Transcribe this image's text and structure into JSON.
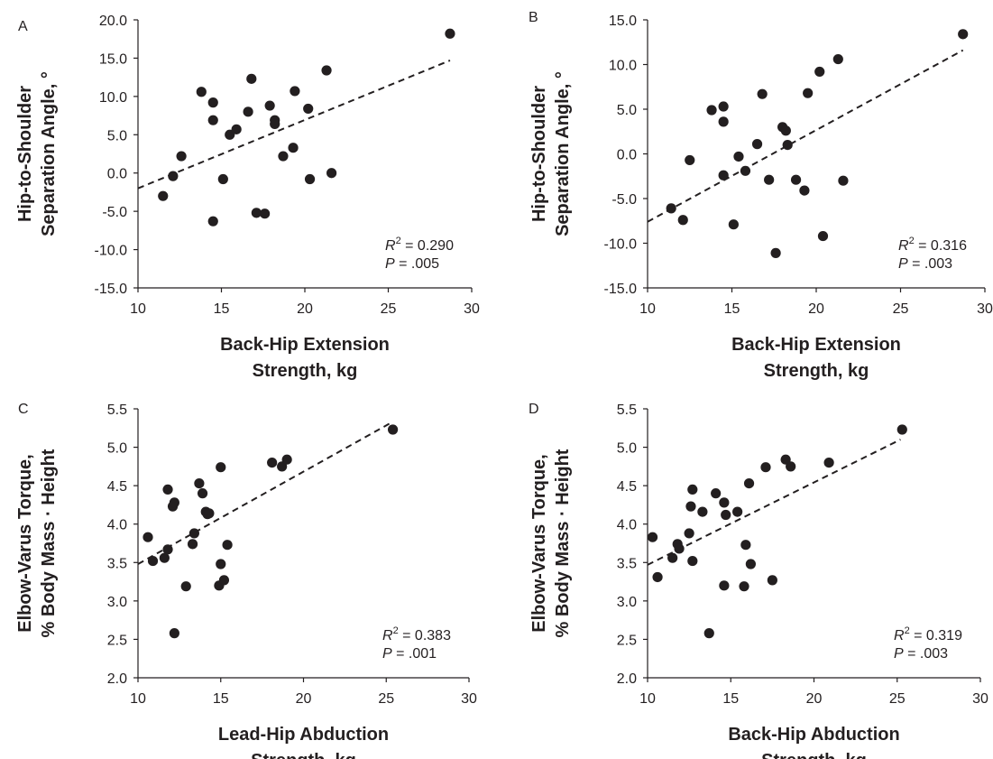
{
  "figure": {
    "colors": {
      "ink": "#231f20",
      "point": "#231f20",
      "background": "#ffffff"
    }
  },
  "chart_data": [
    {
      "panel": "A",
      "type": "scatter",
      "title": "",
      "xlabel": [
        "Back-Hip Extension",
        "Strength, kg"
      ],
      "ylabel": [
        "Hip-to-Shoulder",
        "Separation Angle, °"
      ],
      "xlim": [
        10,
        30
      ],
      "ylim": [
        -15,
        20
      ],
      "xticks": [
        10,
        15,
        20,
        25,
        30
      ],
      "yticks": [
        -15,
        -10,
        -5,
        0,
        5,
        10,
        15,
        20
      ],
      "ytick_labels": [
        "-15.0",
        "-10.0",
        "-5.0",
        "0.0",
        "5.0",
        "10.0",
        "15.0",
        "20.0"
      ],
      "grid": false,
      "trendline": {
        "style": "dashed",
        "x": [
          10,
          28.7
        ],
        "y": [
          -2.0,
          14.7
        ]
      },
      "stats": {
        "r2_label": "R",
        "r2_value": "0.290",
        "p_label": "P",
        "p_value": ".005"
      },
      "points": [
        {
          "x": 11.5,
          "y": -3.0
        },
        {
          "x": 12.1,
          "y": -0.4
        },
        {
          "x": 12.6,
          "y": 2.2
        },
        {
          "x": 13.8,
          "y": 10.6
        },
        {
          "x": 14.5,
          "y": 9.2
        },
        {
          "x": 14.5,
          "y": 6.9
        },
        {
          "x": 14.5,
          "y": -6.3
        },
        {
          "x": 15.1,
          "y": -0.8
        },
        {
          "x": 15.5,
          "y": 5.0
        },
        {
          "x": 15.9,
          "y": 5.7
        },
        {
          "x": 16.6,
          "y": 8.0
        },
        {
          "x": 16.8,
          "y": 12.3
        },
        {
          "x": 17.1,
          "y": -5.2
        },
        {
          "x": 17.6,
          "y": -5.3
        },
        {
          "x": 17.9,
          "y": 8.8
        },
        {
          "x": 18.2,
          "y": 6.9
        },
        {
          "x": 18.2,
          "y": 6.4
        },
        {
          "x": 18.7,
          "y": 2.2
        },
        {
          "x": 19.3,
          "y": 3.3
        },
        {
          "x": 19.4,
          "y": 10.7
        },
        {
          "x": 20.2,
          "y": 8.4
        },
        {
          "x": 20.3,
          "y": -0.8
        },
        {
          "x": 21.3,
          "y": 13.4
        },
        {
          "x": 21.6,
          "y": 0.0
        },
        {
          "x": 28.7,
          "y": 18.2
        }
      ]
    },
    {
      "panel": "B",
      "type": "scatter",
      "title": "",
      "xlabel": [
        "Back-Hip Extension",
        "Strength, kg"
      ],
      "ylabel": [
        "Hip-to-Shoulder",
        "Separation Angle, °"
      ],
      "xlim": [
        10,
        30
      ],
      "ylim": [
        -15,
        15
      ],
      "xticks": [
        10,
        15,
        20,
        25,
        30
      ],
      "yticks": [
        -15,
        -10,
        -5,
        0,
        5,
        10,
        15
      ],
      "ytick_labels": [
        "-15.0",
        "-10.0",
        "-5.0",
        "0.0",
        "5.0",
        "10.0",
        "15.0"
      ],
      "grid": false,
      "trendline": {
        "style": "dashed",
        "x": [
          10,
          28.7
        ],
        "y": [
          -7.6,
          11.6
        ]
      },
      "stats": {
        "r2_label": "R",
        "r2_value": "0.316",
        "p_label": "P",
        "p_value": ".003"
      },
      "points": [
        {
          "x": 11.4,
          "y": -6.1
        },
        {
          "x": 12.1,
          "y": -7.4
        },
        {
          "x": 12.5,
          "y": -0.7
        },
        {
          "x": 13.8,
          "y": 4.9
        },
        {
          "x": 14.5,
          "y": 5.3
        },
        {
          "x": 14.5,
          "y": 3.6
        },
        {
          "x": 14.5,
          "y": -2.4
        },
        {
          "x": 15.1,
          "y": -7.9
        },
        {
          "x": 15.4,
          "y": -0.3
        },
        {
          "x": 15.8,
          "y": -1.9
        },
        {
          "x": 16.5,
          "y": 1.1
        },
        {
          "x": 16.8,
          "y": 6.7
        },
        {
          "x": 17.2,
          "y": -2.9
        },
        {
          "x": 17.6,
          "y": -11.1
        },
        {
          "x": 18.0,
          "y": 3.0
        },
        {
          "x": 18.2,
          "y": 2.6
        },
        {
          "x": 18.3,
          "y": 1.0
        },
        {
          "x": 18.8,
          "y": -2.9
        },
        {
          "x": 19.3,
          "y": -4.1
        },
        {
          "x": 19.5,
          "y": 6.8
        },
        {
          "x": 20.2,
          "y": 9.2
        },
        {
          "x": 20.4,
          "y": -9.2
        },
        {
          "x": 21.3,
          "y": 10.6
        },
        {
          "x": 21.6,
          "y": -3.0
        },
        {
          "x": 28.7,
          "y": 13.4
        }
      ]
    },
    {
      "panel": "C",
      "type": "scatter",
      "title": "",
      "xlabel": [
        "Lead-Hip Abduction",
        "Strength, kg"
      ],
      "ylabel": [
        "Elbow-Varus Torque,",
        "% Body Mass · Height"
      ],
      "xlim": [
        10,
        30
      ],
      "ylim": [
        2.0,
        5.5
      ],
      "xticks": [
        10,
        15,
        20,
        25,
        30
      ],
      "yticks": [
        2.0,
        2.5,
        3.0,
        3.5,
        4.0,
        4.5,
        5.0,
        5.5
      ],
      "ytick_labels": [
        "2.0",
        "2.5",
        "3.0",
        "3.5",
        "4.0",
        "4.5",
        "5.0",
        "5.5"
      ],
      "grid": false,
      "trendline": {
        "style": "dashed",
        "x": [
          10,
          25.3
        ],
        "y": [
          3.48,
          5.32
        ]
      },
      "stats": {
        "r2_label": "R",
        "r2_value": "0.383",
        "p_label": "P",
        "p_value": ".001"
      },
      "points": [
        {
          "x": 10.6,
          "y": 3.83
        },
        {
          "x": 10.9,
          "y": 3.52
        },
        {
          "x": 11.6,
          "y": 3.56
        },
        {
          "x": 11.8,
          "y": 3.67
        },
        {
          "x": 11.8,
          "y": 4.45
        },
        {
          "x": 12.1,
          "y": 4.23
        },
        {
          "x": 12.2,
          "y": 4.28
        },
        {
          "x": 12.2,
          "y": 2.58
        },
        {
          "x": 12.9,
          "y": 3.19
        },
        {
          "x": 13.3,
          "y": 3.74
        },
        {
          "x": 13.4,
          "y": 3.88
        },
        {
          "x": 13.7,
          "y": 4.53
        },
        {
          "x": 13.9,
          "y": 4.4
        },
        {
          "x": 14.1,
          "y": 4.16
        },
        {
          "x": 14.2,
          "y": 4.13
        },
        {
          "x": 14.3,
          "y": 4.14
        },
        {
          "x": 14.9,
          "y": 3.2
        },
        {
          "x": 15.0,
          "y": 3.48
        },
        {
          "x": 15.0,
          "y": 4.74
        },
        {
          "x": 15.2,
          "y": 3.27
        },
        {
          "x": 15.4,
          "y": 3.73
        },
        {
          "x": 18.1,
          "y": 4.8
        },
        {
          "x": 18.7,
          "y": 4.75
        },
        {
          "x": 19.0,
          "y": 4.84
        },
        {
          "x": 25.4,
          "y": 5.23
        }
      ]
    },
    {
      "panel": "D",
      "type": "scatter",
      "title": "",
      "xlabel": [
        "Back-Hip Abduction",
        "Strength, kg"
      ],
      "ylabel": [
        "Elbow-Varus Torque,",
        "% Body Mass · Height"
      ],
      "xlim": [
        10,
        30
      ],
      "ylim": [
        2.0,
        5.5
      ],
      "xticks": [
        10,
        15,
        20,
        25,
        30
      ],
      "yticks": [
        2.0,
        2.5,
        3.0,
        3.5,
        4.0,
        4.5,
        5.0,
        5.5
      ],
      "ytick_labels": [
        "2.0",
        "2.5",
        "3.0",
        "3.5",
        "4.0",
        "4.5",
        "5.0",
        "5.5"
      ],
      "grid": false,
      "trendline": {
        "style": "dashed",
        "x": [
          10,
          25.2
        ],
        "y": [
          3.47,
          5.1
        ]
      },
      "stats": {
        "r2_label": "R",
        "r2_value": "0.319",
        "p_label": "P",
        "p_value": ".003"
      },
      "points": [
        {
          "x": 10.3,
          "y": 3.83
        },
        {
          "x": 10.6,
          "y": 3.31
        },
        {
          "x": 11.5,
          "y": 3.56
        },
        {
          "x": 11.8,
          "y": 3.74
        },
        {
          "x": 11.9,
          "y": 3.68
        },
        {
          "x": 12.5,
          "y": 3.88
        },
        {
          "x": 12.6,
          "y": 4.23
        },
        {
          "x": 12.7,
          "y": 4.45
        },
        {
          "x": 12.7,
          "y": 3.52
        },
        {
          "x": 13.3,
          "y": 4.16
        },
        {
          "x": 13.7,
          "y": 2.58
        },
        {
          "x": 14.1,
          "y": 4.4
        },
        {
          "x": 14.6,
          "y": 4.28
        },
        {
          "x": 14.6,
          "y": 3.2
        },
        {
          "x": 14.7,
          "y": 4.12
        },
        {
          "x": 15.4,
          "y": 4.16
        },
        {
          "x": 15.8,
          "y": 3.19
        },
        {
          "x": 15.9,
          "y": 3.73
        },
        {
          "x": 16.1,
          "y": 4.53
        },
        {
          "x": 16.2,
          "y": 3.48
        },
        {
          "x": 17.1,
          "y": 4.74
        },
        {
          "x": 17.5,
          "y": 3.27
        },
        {
          "x": 18.3,
          "y": 4.84
        },
        {
          "x": 18.6,
          "y": 4.75
        },
        {
          "x": 20.9,
          "y": 4.8
        },
        {
          "x": 25.3,
          "y": 5.23
        }
      ]
    }
  ]
}
